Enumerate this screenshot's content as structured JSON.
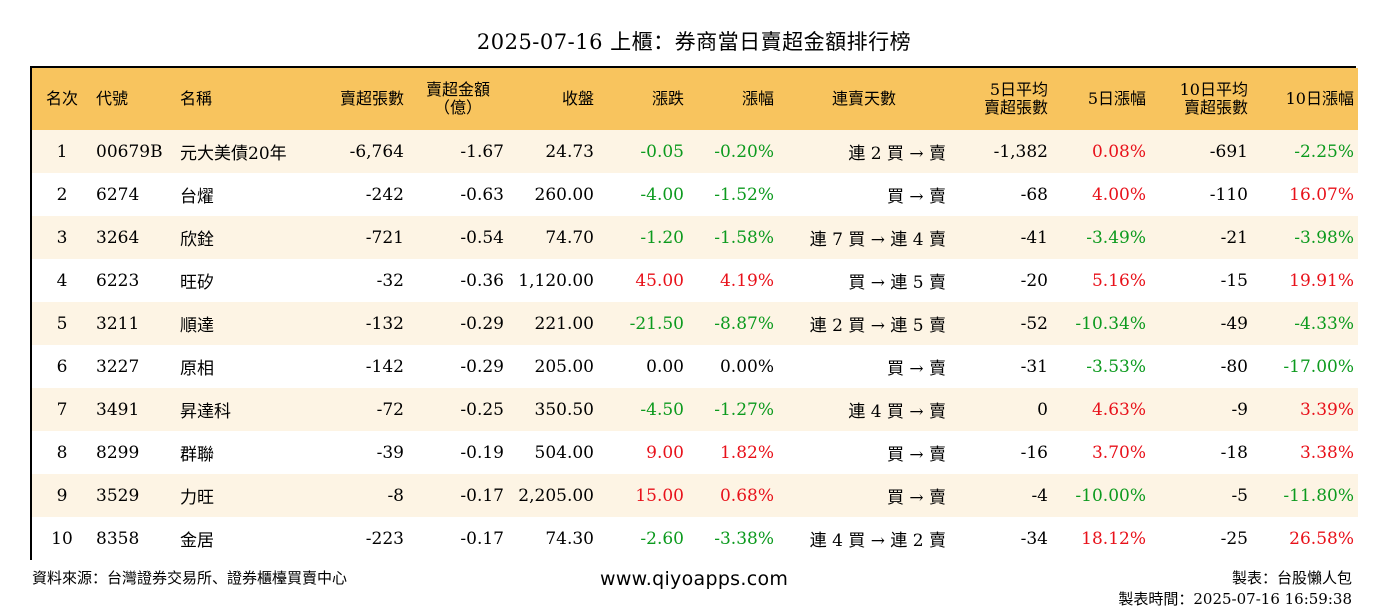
{
  "title": "2025-07-16 上櫃：券商當日賣超金額排行榜",
  "columns": [
    {
      "line1": "名次",
      "line2": ""
    },
    {
      "line1": "代號",
      "line2": ""
    },
    {
      "line1": "名稱",
      "line2": ""
    },
    {
      "line1": "賣超張數",
      "line2": ""
    },
    {
      "line1": "賣超金額",
      "line2": "（億）"
    },
    {
      "line1": "收盤",
      "line2": ""
    },
    {
      "line1": "漲跌",
      "line2": ""
    },
    {
      "line1": "漲幅",
      "line2": ""
    },
    {
      "line1": "連賣天數",
      "line2": ""
    },
    {
      "line1": "5日平均",
      "line2": "賣超張數"
    },
    {
      "line1": "5日漲幅",
      "line2": ""
    },
    {
      "line1": "10日平均",
      "line2": "賣超張數"
    },
    {
      "line1": "10日漲幅",
      "line2": ""
    }
  ],
  "rows": [
    {
      "rank": "1",
      "code": "00679B",
      "name": "元大美債20年",
      "sell_lots": "-6,764",
      "sell_amount": "-1.67",
      "close": "24.73",
      "change": "-0.05",
      "change_pct": "-0.20%",
      "streak": "連 2 買 → 賣",
      "avg5": "-1,382",
      "pct5": "0.08%",
      "avg10": "-691",
      "pct10": "-2.25%"
    },
    {
      "rank": "2",
      "code": "6274",
      "name": "台燿",
      "sell_lots": "-242",
      "sell_amount": "-0.63",
      "close": "260.00",
      "change": "-4.00",
      "change_pct": "-1.52%",
      "streak": "買 → 賣",
      "avg5": "-68",
      "pct5": "4.00%",
      "avg10": "-110",
      "pct10": "16.07%"
    },
    {
      "rank": "3",
      "code": "3264",
      "name": "欣銓",
      "sell_lots": "-721",
      "sell_amount": "-0.54",
      "close": "74.70",
      "change": "-1.20",
      "change_pct": "-1.58%",
      "streak": "連 7 買 → 連 4 賣",
      "avg5": "-41",
      "pct5": "-3.49%",
      "avg10": "-21",
      "pct10": "-3.98%"
    },
    {
      "rank": "4",
      "code": "6223",
      "name": "旺矽",
      "sell_lots": "-32",
      "sell_amount": "-0.36",
      "close": "1,120.00",
      "change": "45.00",
      "change_pct": "4.19%",
      "streak": "買 → 連 5 賣",
      "avg5": "-20",
      "pct5": "5.16%",
      "avg10": "-15",
      "pct10": "19.91%"
    },
    {
      "rank": "5",
      "code": "3211",
      "name": "順達",
      "sell_lots": "-132",
      "sell_amount": "-0.29",
      "close": "221.00",
      "change": "-21.50",
      "change_pct": "-8.87%",
      "streak": "連 2 買 → 連 5 賣",
      "avg5": "-52",
      "pct5": "-10.34%",
      "avg10": "-49",
      "pct10": "-4.33%"
    },
    {
      "rank": "6",
      "code": "3227",
      "name": "原相",
      "sell_lots": "-142",
      "sell_amount": "-0.29",
      "close": "205.00",
      "change": "0.00",
      "change_pct": "0.00%",
      "streak": "買 → 賣",
      "avg5": "-31",
      "pct5": "-3.53%",
      "avg10": "-80",
      "pct10": "-17.00%"
    },
    {
      "rank": "7",
      "code": "3491",
      "name": "昇達科",
      "sell_lots": "-72",
      "sell_amount": "-0.25",
      "close": "350.50",
      "change": "-4.50",
      "change_pct": "-1.27%",
      "streak": "連 4 買 → 賣",
      "avg5": "0",
      "pct5": "4.63%",
      "avg10": "-9",
      "pct10": "3.39%"
    },
    {
      "rank": "8",
      "code": "8299",
      "name": "群聯",
      "sell_lots": "-39",
      "sell_amount": "-0.19",
      "close": "504.00",
      "change": "9.00",
      "change_pct": "1.82%",
      "streak": "買 → 賣",
      "avg5": "-16",
      "pct5": "3.70%",
      "avg10": "-18",
      "pct10": "3.38%"
    },
    {
      "rank": "9",
      "code": "3529",
      "name": "力旺",
      "sell_lots": "-8",
      "sell_amount": "-0.17",
      "close": "2,205.00",
      "change": "15.00",
      "change_pct": "0.68%",
      "streak": "買 → 賣",
      "avg5": "-4",
      "pct5": "-10.00%",
      "avg10": "-5",
      "pct10": "-11.80%"
    },
    {
      "rank": "10",
      "code": "8358",
      "name": "金居",
      "sell_lots": "-223",
      "sell_amount": "-0.17",
      "close": "74.30",
      "change": "-2.60",
      "change_pct": "-3.38%",
      "streak": "連 4 買 → 連 2 賣",
      "avg5": "-34",
      "pct5": "18.12%",
      "avg10": "-25",
      "pct10": "26.58%"
    }
  ],
  "colors": {
    "header_bg": "#f8c45e",
    "odd_row_bg": "#fdf4e4",
    "positive": "#e8111a",
    "negative": "#0c9a1e"
  },
  "footer": {
    "source": "資料來源：台灣證券交易所、證券櫃檯買賣中心",
    "website": "www.qiyoapps.com",
    "maker": "製表：台股懶人包",
    "time": "製表時間：2025-07-16 16:59:38"
  }
}
